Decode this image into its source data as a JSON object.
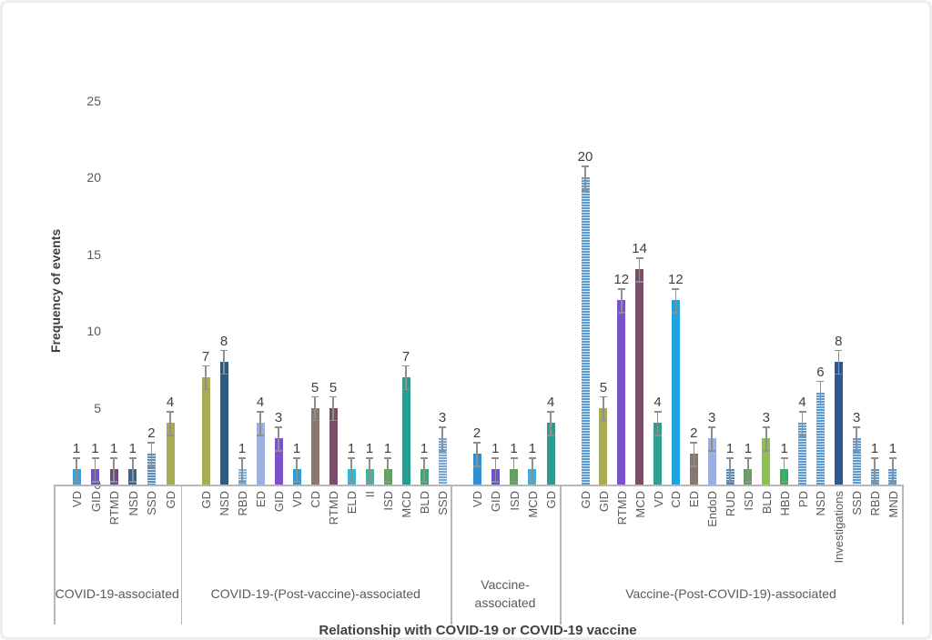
{
  "chart_data": {
    "type": "bar",
    "title": "",
    "ylabel": "Frequency of events",
    "xlabel": "Relationship with COVID-19 or COVID-19 vaccine",
    "ylim": [
      0,
      25
    ],
    "yticks": [
      0,
      5,
      10,
      15,
      20,
      25
    ],
    "grid": false,
    "legend": false,
    "error_bars": true,
    "groups": [
      {
        "label": "COVID-19-associated",
        "bars": [
          {
            "label": "VD",
            "value": 1,
            "color": "#3F9FD4",
            "striped": false
          },
          {
            "label": "GID",
            "value": 1,
            "color": "#7155C6",
            "striped": false
          },
          {
            "label": "RTMD",
            "value": 1,
            "color": "#6B4E7E",
            "striped": false
          },
          {
            "label": "NSD",
            "value": 1,
            "color": "#3A6390",
            "striped": false
          },
          {
            "label": "SSD",
            "value": 2,
            "color": "#5E8AB8",
            "striped": true
          },
          {
            "label": "GD",
            "value": 4,
            "color": "#A8AB54",
            "striped": false
          }
        ]
      },
      {
        "label": "COVID-19-(Post-vaccine)-associated",
        "bars": [
          {
            "label": "GD",
            "value": 7,
            "color": "#A8AB54",
            "striped": false
          },
          {
            "label": "NSD",
            "value": 8,
            "color": "#2E5A80",
            "striped": false
          },
          {
            "label": "RBD",
            "value": 1,
            "color": "#7FB2D8",
            "striped": true
          },
          {
            "label": "ED",
            "value": 4,
            "color": "#9FB0E0",
            "striped": false
          },
          {
            "label": "GID",
            "value": 3,
            "color": "#7C52C8",
            "striped": false
          },
          {
            "label": "VD",
            "value": 1,
            "color": "#2D9BD4",
            "striped": false
          },
          {
            "label": "CD",
            "value": 5,
            "color": "#8A7870",
            "striped": false
          },
          {
            "label": "RTMD",
            "value": 5,
            "color": "#7B4E68",
            "striped": false
          },
          {
            "label": "ELD",
            "value": 1,
            "color": "#30B8D4",
            "striped": false
          },
          {
            "label": "II",
            "value": 1,
            "color": "#4BAF9F",
            "striped": false
          },
          {
            "label": "ISD",
            "value": 1,
            "color": "#5BA55B",
            "striped": false
          },
          {
            "label": "MCD",
            "value": 7,
            "color": "#289E90",
            "striped": false
          },
          {
            "label": "BLD",
            "value": 1,
            "color": "#3BAA70",
            "striped": false
          },
          {
            "label": "SSD",
            "value": 3,
            "color": "#7FA6D2",
            "striped": true
          }
        ]
      },
      {
        "label": "Vaccine-associated",
        "bars": [
          {
            "label": "VD",
            "value": 2,
            "color": "#2F8FD0",
            "striped": false
          },
          {
            "label": "GID",
            "value": 1,
            "color": "#6A52C8",
            "striped": false
          },
          {
            "label": "ISD",
            "value": 1,
            "color": "#5BA55B",
            "striped": false
          },
          {
            "label": "MCD",
            "value": 1,
            "color": "#41B0DC",
            "striped": false
          },
          {
            "label": "GD",
            "value": 4,
            "color": "#289E90",
            "striped": false
          }
        ]
      },
      {
        "label": "Vaccine-(Post-COVID-19)-associated",
        "bars": [
          {
            "label": "GD",
            "value": 20,
            "color": "#5B9BD5",
            "striped": true
          },
          {
            "label": "GID",
            "value": 5,
            "color": "#A8AB54",
            "striped": false
          },
          {
            "label": "RTMD",
            "value": 12,
            "color": "#7B52CE",
            "striped": false
          },
          {
            "label": "MCD",
            "value": 14,
            "color": "#7B4E68",
            "striped": false
          },
          {
            "label": "VD",
            "value": 4,
            "color": "#2EA08F",
            "striped": false
          },
          {
            "label": "CD",
            "value": 12,
            "color": "#1FA3DC",
            "striped": false
          },
          {
            "label": "ED",
            "value": 2,
            "color": "#847870",
            "striped": false
          },
          {
            "label": "EndoD",
            "value": 3,
            "color": "#9DAEE0",
            "striped": false
          },
          {
            "label": "RUD",
            "value": 1,
            "color": "#4F87C0",
            "striped": true
          },
          {
            "label": "ISD",
            "value": 1,
            "color": "#5BA55B",
            "striped": false
          },
          {
            "label": "BLD",
            "value": 3,
            "color": "#8CC050",
            "striped": false
          },
          {
            "label": "HBD",
            "value": 1,
            "color": "#35AD68",
            "striped": false
          },
          {
            "label": "PD",
            "value": 4,
            "color": "#5B9BD5",
            "striped": true
          },
          {
            "label": "NSD",
            "value": 6,
            "color": "#5B9BD5",
            "striped": true
          },
          {
            "label": "Investigations",
            "value": 8,
            "color": "#2B5795",
            "striped": false
          },
          {
            "label": "SSD",
            "value": 3,
            "color": "#5B9BD5",
            "striped": true
          },
          {
            "label": "RBD",
            "value": 1,
            "color": "#5B9BD5",
            "striped": true
          },
          {
            "label": "MND",
            "value": 1,
            "color": "#5B9BD5",
            "striped": true
          }
        ]
      }
    ]
  }
}
